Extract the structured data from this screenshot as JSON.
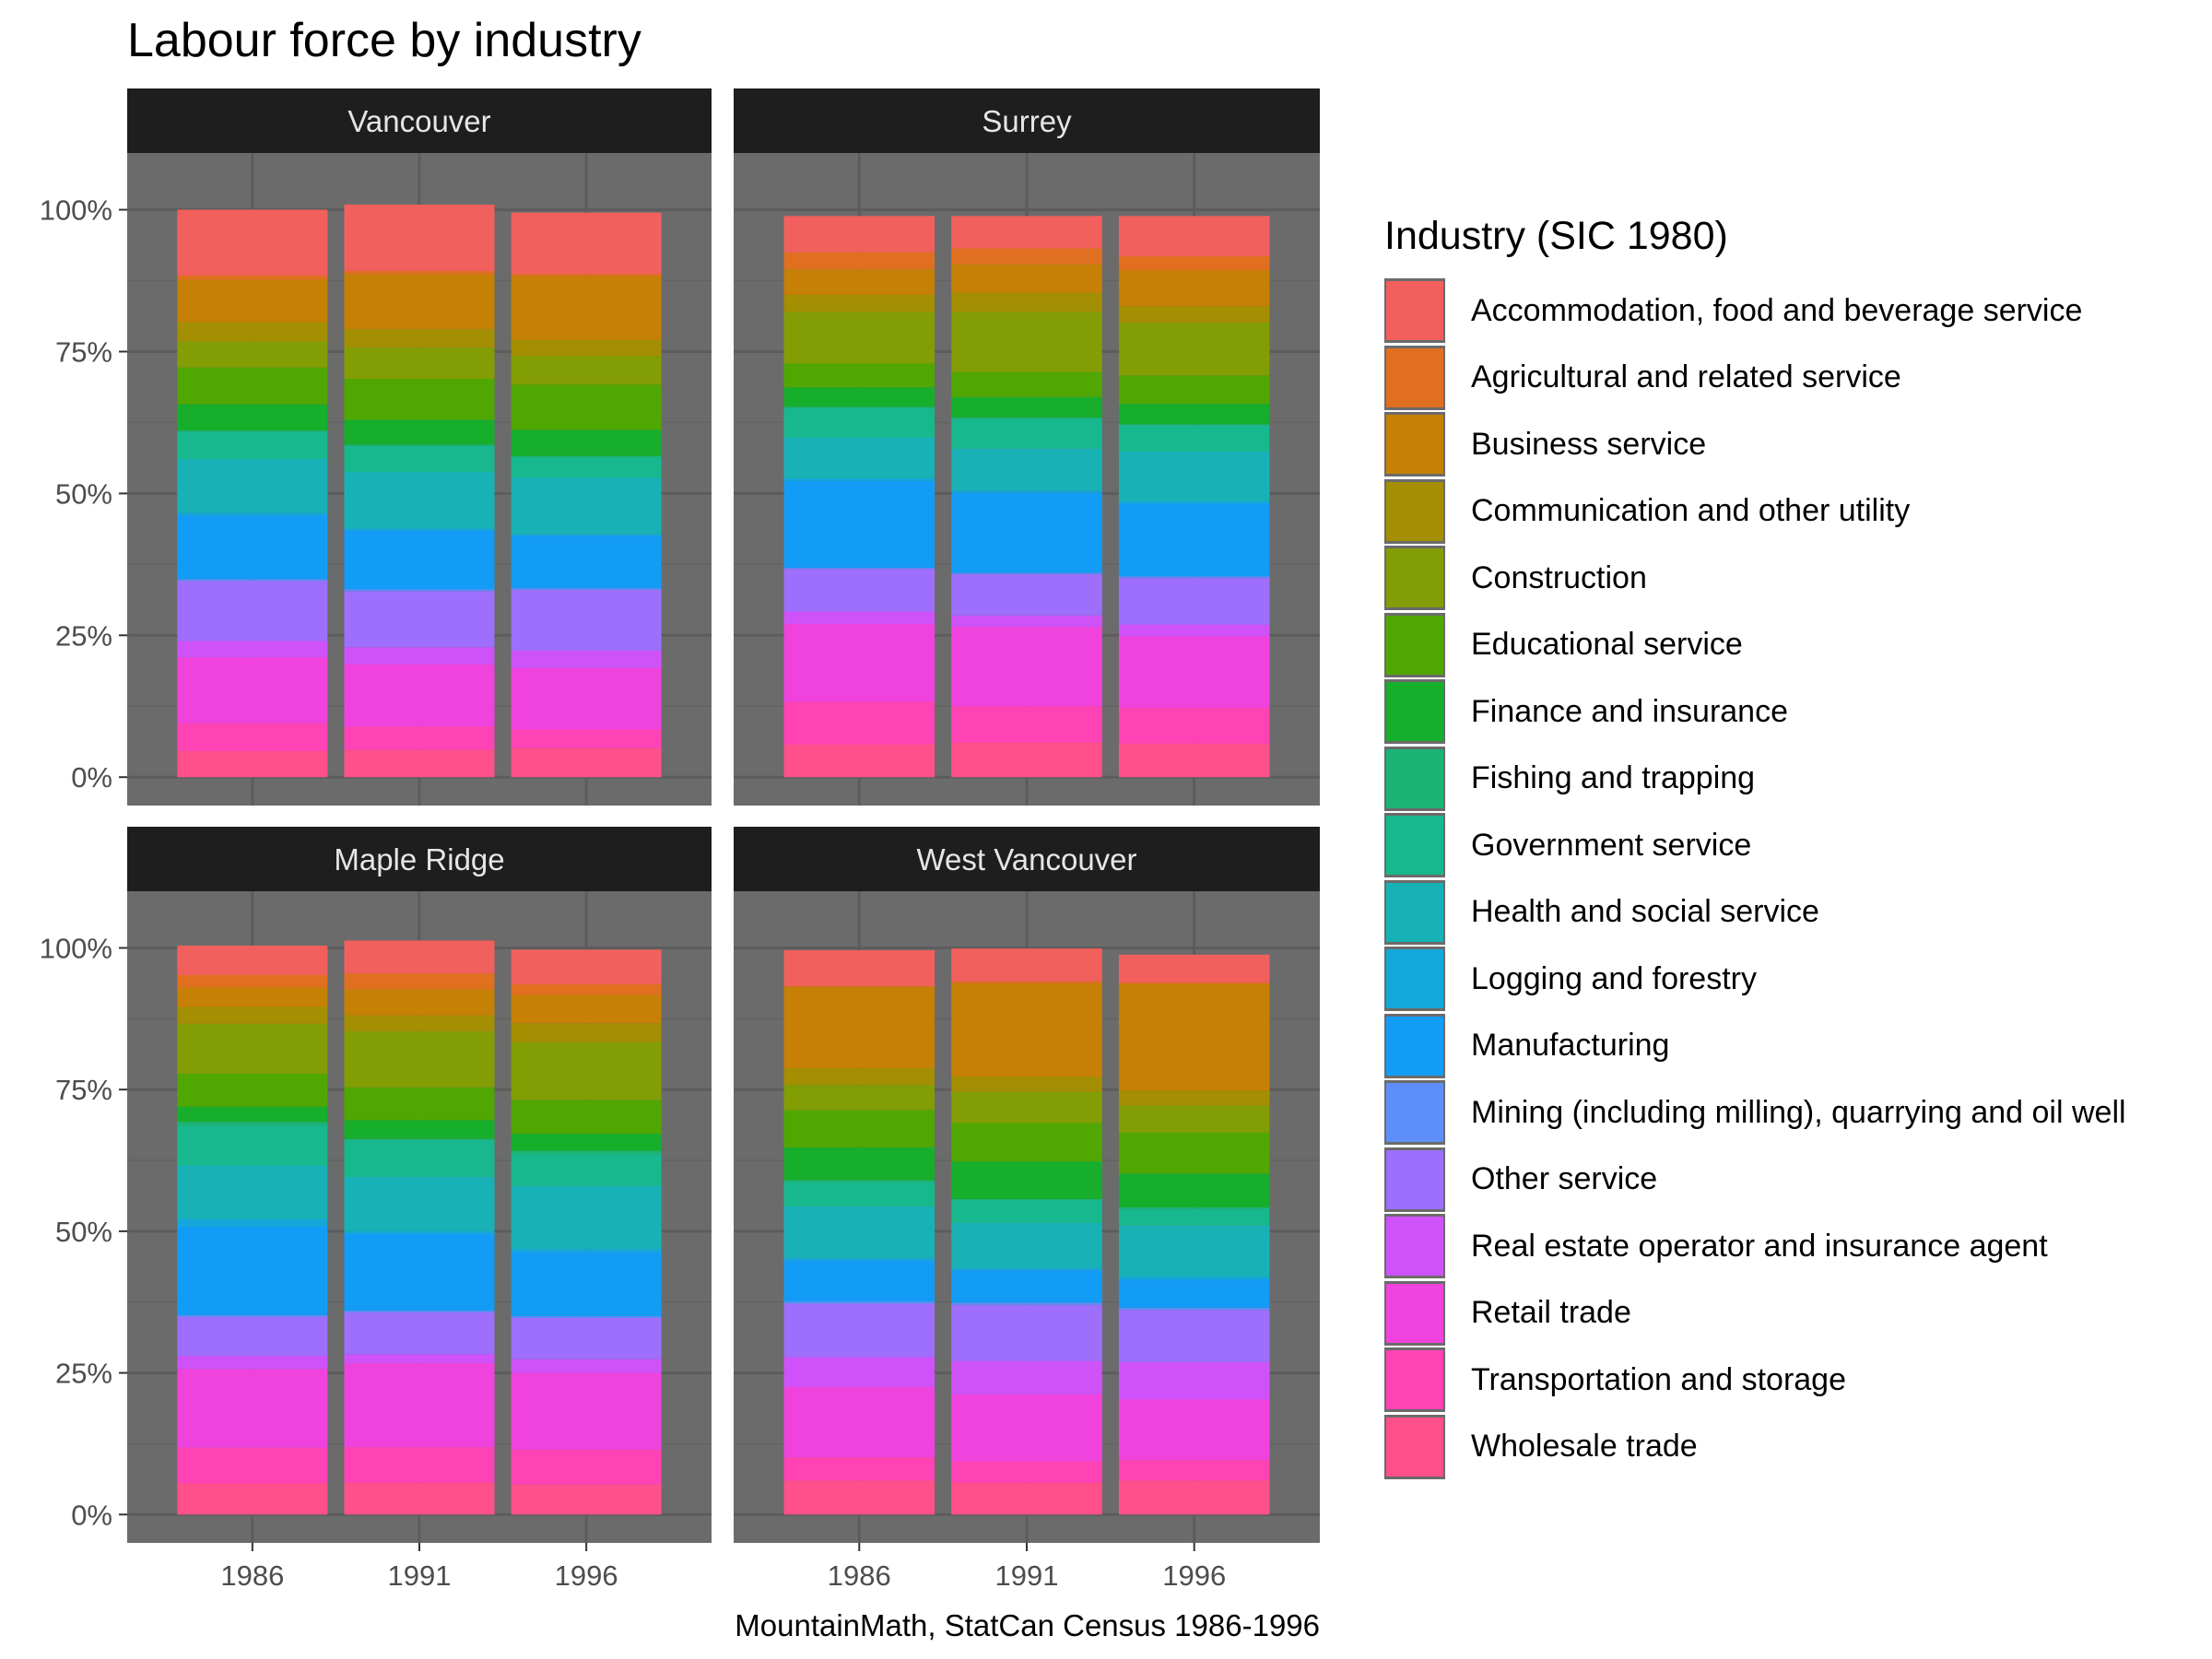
{
  "title": "Labour force by industry",
  "caption": "MountainMath, StatCan Census 1986-1996",
  "legend": {
    "title": "Industry (SIC 1980)",
    "items": [
      {
        "label": "Accommodation, food and beverage service",
        "color": "#F2605D"
      },
      {
        "label": "Agricultural and related service",
        "color": "#E07020"
      },
      {
        "label": "Business service",
        "color": "#C68005"
      },
      {
        "label": "Communication and other utility",
        "color": "#A48E02"
      },
      {
        "label": "Construction",
        "color": "#839D05"
      },
      {
        "label": "Educational service",
        "color": "#51A702"
      },
      {
        "label": "Finance and insurance",
        "color": "#17AE2C"
      },
      {
        "label": "Fishing and trapping",
        "color": "#1BB474"
      },
      {
        "label": "Government service",
        "color": "#18B88E"
      },
      {
        "label": "Health and social service",
        "color": "#18B2B6"
      },
      {
        "label": "Logging and forestry",
        "color": "#14A8DA"
      },
      {
        "label": "Manufacturing",
        "color": "#129CF6"
      },
      {
        "label": "Mining (including milling), quarrying and oil well",
        "color": "#5E8EF8"
      },
      {
        "label": "Other service",
        "color": "#9D6FFC"
      },
      {
        "label": "Real estate operator and insurance agent",
        "color": "#CF52F8"
      },
      {
        "label": "Retail trade",
        "color": "#F043DD"
      },
      {
        "label": "Transportation and storage",
        "color": "#FF43B5"
      },
      {
        "label": "Wholesale trade",
        "color": "#FF508B"
      }
    ]
  },
  "chart_data": {
    "type": "bar",
    "stacked": true,
    "facets": [
      "Vancouver",
      "Surrey",
      "Maple Ridge",
      "West Vancouver"
    ],
    "categories": [
      "1986",
      "1991",
      "1996"
    ],
    "ylim": [
      0,
      1.1
    ],
    "yticks": [
      "0%",
      "25%",
      "50%",
      "75%",
      "100%"
    ],
    "ytick_values": [
      0,
      0.25,
      0.5,
      0.75,
      1.0
    ],
    "xlabel": "",
    "ylabel": "",
    "legend_position": "right",
    "series_order_bottom_to_top": "Wholesale trade first, Accommodation last",
    "panels": [
      {
        "name": "Vancouver",
        "values": [
          [
            11.6,
            0.7,
            7.5,
            3.4,
            4.6,
            6.5,
            4.6,
            0.2,
            4.8,
            9.5,
            0.5,
            11.2,
            0.3,
            10.6,
            2.9,
            11.6,
            4.9,
            4.6
          ],
          [
            11.7,
            0.6,
            9.6,
            3.3,
            5.5,
            7.2,
            4.4,
            0.2,
            4.6,
            10.0,
            0.3,
            10.4,
            0.3,
            9.9,
            3.0,
            11.0,
            4.1,
            4.8
          ],
          [
            10.8,
            0.4,
            11.2,
            2.9,
            5.0,
            8.0,
            4.6,
            0.2,
            3.6,
            10.0,
            0.3,
            9.2,
            0.3,
            10.7,
            3.1,
            10.8,
            3.3,
            5.1
          ]
        ]
      },
      {
        "name": "Surrey",
        "values": [
          [
            6.4,
            3.0,
            4.5,
            3.0,
            9.1,
            4.2,
            3.4,
            0.3,
            5.1,
            7.2,
            0.5,
            15.3,
            0.2,
            7.5,
            2.2,
            13.7,
            7.5,
            5.8
          ],
          [
            5.7,
            2.8,
            5.0,
            3.4,
            10.6,
            4.4,
            3.6,
            0.2,
            5.3,
            7.4,
            0.4,
            14.1,
            0.2,
            7.3,
            2.0,
            14.0,
            6.4,
            6.1
          ],
          [
            7.1,
            2.5,
            6.3,
            2.9,
            9.3,
            5.0,
            3.6,
            0.2,
            4.6,
            8.8,
            0.4,
            12.8,
            0.3,
            8.2,
            2.1,
            12.6,
            6.3,
            5.9
          ]
        ]
      },
      {
        "name": "Maple Ridge",
        "values": [
          [
            5.2,
            2.2,
            3.4,
            3.0,
            8.8,
            5.8,
            2.7,
            0.6,
            7.1,
            9.4,
            1.4,
            15.6,
            0.3,
            6.9,
            2.3,
            13.9,
            6.3,
            5.5
          ],
          [
            5.8,
            2.8,
            4.6,
            2.8,
            9.9,
            5.8,
            3.3,
            0.2,
            6.5,
            9.6,
            0.5,
            13.5,
            0.3,
            7.4,
            1.6,
            14.8,
            6.3,
            5.6
          ],
          [
            6.1,
            1.9,
            5.0,
            3.3,
            10.2,
            6.0,
            3.0,
            0.6,
            5.6,
            11.1,
            0.6,
            11.3,
            0.3,
            7.3,
            2.4,
            13.6,
            6.1,
            5.3
          ]
        ]
      },
      {
        "name": "West Vancouver",
        "values": [
          [
            6.3,
            0.2,
            14.3,
            3.0,
            4.4,
            6.6,
            5.8,
            0.3,
            4.3,
            9.1,
            0.5,
            7.2,
            0.4,
            9.4,
            5.3,
            12.4,
            4.1,
            6.0
          ],
          [
            5.8,
            0.4,
            16.4,
            2.7,
            5.5,
            6.8,
            6.6,
            0.2,
            4.0,
            8.0,
            0.4,
            5.7,
            0.4,
            9.9,
            5.9,
            11.8,
            3.8,
            5.6
          ],
          [
            4.9,
            0.3,
            18.8,
            2.6,
            4.8,
            7.2,
            6.0,
            0.2,
            3.0,
            9.0,
            0.5,
            5.0,
            0.4,
            9.2,
            6.6,
            10.7,
            3.6,
            6.0
          ]
        ]
      }
    ]
  }
}
